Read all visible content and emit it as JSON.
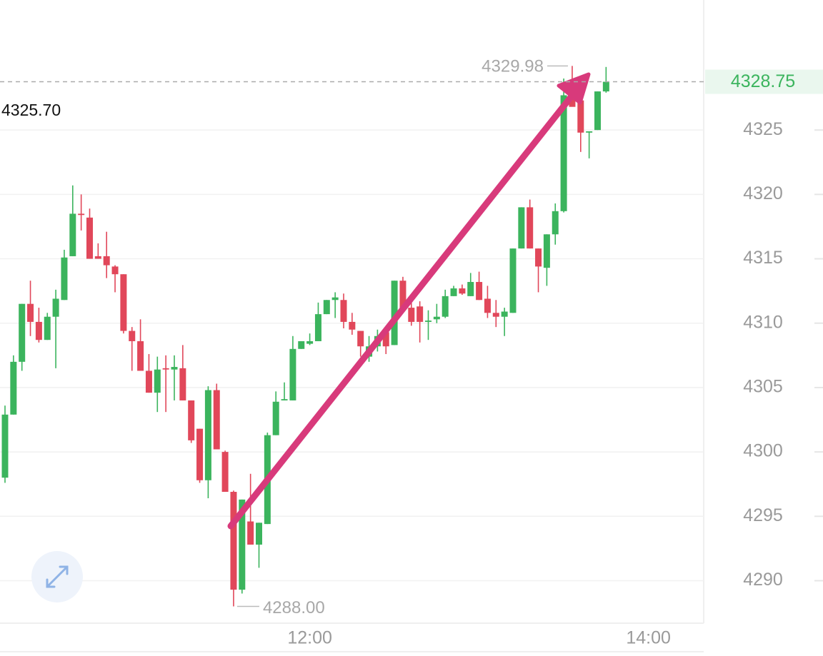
{
  "chart_data": {
    "type": "candlestick",
    "categories": [
      null,
      null,
      null,
      null,
      null,
      null,
      null,
      null,
      null,
      null,
      null,
      null,
      null,
      null,
      null,
      null,
      null,
      null,
      null,
      null,
      null,
      null,
      null,
      null,
      null,
      null,
      null,
      null,
      null,
      null,
      null,
      null,
      null,
      null,
      null,
      null,
      "12:00",
      null,
      null,
      null,
      null,
      null,
      null,
      null,
      null,
      null,
      null,
      null,
      null,
      null,
      null,
      null,
      null,
      null,
      null,
      null,
      null,
      null,
      null,
      null,
      null,
      null,
      null,
      null,
      null,
      null,
      null,
      null,
      null,
      null,
      null,
      null,
      null,
      null,
      null,
      null,
      "14:00"
    ],
    "open": [
      4298.0,
      4302.9,
      4307.0,
      4311.5,
      4310.1,
      4308.7,
      4310.5,
      4311.8,
      4315.2,
      4318.5,
      4318.2,
      4315.2,
      4315.2,
      4314.4,
      4313.8,
      4309.4,
      4308.6,
      4306.3,
      4304.6,
      4306.5,
      4306.4,
      4306.5,
      4304.0,
      4301.8,
      4297.8,
      4304.8,
      4300.0,
      4296.9,
      4289.3,
      4294.6,
      4292.8,
      4294.4,
      4301.3,
      4304.0,
      4304.0,
      4308.0,
      4308.4,
      4308.6,
      4310.7,
      4311.8,
      4311.8,
      4310.1,
      4309.4,
      4307.4,
      4308.2,
      4309.3,
      4308.3,
      4313.3,
      4311.2,
      4311.3,
      4310.1,
      4310.3,
      4310.5,
      4312.1,
      4312.7,
      4312.1,
      4313.2,
      4311.9,
      4310.8,
      4310.5,
      4310.8,
      4315.8,
      4319.0,
      4315.8,
      4314.3,
      4316.9,
      4318.7,
      4327.7,
      4327.3,
      4324.8,
      4325.0,
      4328.0,
      null,
      null,
      null,
      null,
      null
    ],
    "high": [
      4303.6,
      4307.5,
      4311.5,
      4313.3,
      4311.2,
      4310.8,
      4312.6,
      4315.7,
      4320.7,
      4320.0,
      4318.9,
      4316.2,
      4317.1,
      4314.5,
      4313.8,
      4309.7,
      4310.3,
      4307.6,
      4307.4,
      4307.5,
      4307.5,
      4308.3,
      4304.0,
      4301.8,
      4305.1,
      4305.3,
      4300.1,
      4297.0,
      4296.3,
      4298.3,
      4294.5,
      4301.5,
      4304.7,
      4305.4,
      4309.0,
      4308.6,
      4309.2,
      4311.6,
      4311.8,
      4312.4,
      4312.3,
      4310.8,
      4309.4,
      4309.0,
      4309.5,
      4309.7,
      4313.3,
      4313.6,
      4312.0,
      4311.7,
      4311.0,
      4311.5,
      4312.6,
      4312.9,
      4313.0,
      4313.9,
      4314.0,
      4312.9,
      4311.8,
      4311.2,
      4315.8,
      4319.0,
      4319.6,
      4315.8,
      4316.9,
      4319.3,
      4329.0,
      4329.98,
      4327.3,
      4324.9,
      4328.0,
      4329.9,
      null,
      null,
      null,
      null,
      null
    ],
    "low": [
      4297.6,
      4302.9,
      4306.3,
      4309.0,
      4308.5,
      4308.7,
      4306.5,
      4311.8,
      4315.2,
      4317.2,
      4315.0,
      4315.0,
      4313.5,
      4312.4,
      4309.2,
      4306.3,
      4306.3,
      4304.6,
      4303.1,
      4303.1,
      4304.0,
      4304.0,
      4300.7,
      4297.6,
      4296.4,
      4300.2,
      4296.9,
      4288.0,
      4289.0,
      4292.8,
      4291.0,
      4294.4,
      4301.3,
      4304.0,
      4304.0,
      4308.0,
      4308.3,
      4308.6,
      4310.7,
      4310.4,
      4309.6,
      4309.1,
      4307.4,
      4307.0,
      4307.8,
      4307.6,
      4308.3,
      4311.2,
      4309.8,
      4308.5,
      4308.7,
      4310.0,
      4310.4,
      4312.1,
      4312.2,
      4312.1,
      4311.8,
      4310.4,
      4309.7,
      4309.0,
      4310.8,
      4315.8,
      4315.8,
      4312.4,
      4312.9,
      4316.1,
      4318.6,
      4327.0,
      4323.3,
      4322.8,
      4325.0,
      4327.9,
      null,
      null,
      null,
      null,
      null
    ],
    "close": [
      4302.9,
      4307.0,
      4311.5,
      4310.1,
      4308.7,
      4310.5,
      4311.9,
      4315.1,
      4318.5,
      4318.4,
      4315.0,
      4315.0,
      4314.5,
      4313.8,
      4309.4,
      4308.6,
      4306.3,
      4304.6,
      4306.4,
      4306.4,
      4306.6,
      4304.0,
      4300.9,
      4297.8,
      4304.8,
      4300.2,
      4296.9,
      4289.3,
      4296.3,
      4292.8,
      4294.5,
      4301.3,
      4303.9,
      4304.1,
      4308.0,
      4308.6,
      4308.6,
      4310.7,
      4311.8,
      4312.0,
      4310.1,
      4309.5,
      4308.2,
      4308.2,
      4309.0,
      4308.2,
      4313.3,
      4311.2,
      4310.1,
      4310.1,
      4310.2,
      4310.5,
      4312.1,
      4312.7,
      4312.3,
      4313.2,
      4311.8,
      4310.8,
      4310.5,
      4310.9,
      4315.8,
      4319.0,
      4315.8,
      4314.4,
      4316.9,
      4318.7,
      4327.7,
      4326.8,
      4324.8,
      4324.9,
      4328.0,
      4328.75,
      null,
      null,
      null,
      null,
      null
    ],
    "up_color": "#3bb45d",
    "down_color": "#e1475a",
    "ylim": [
      4286.7,
      4335.1
    ],
    "yticks": [
      4290,
      4295,
      4300,
      4305,
      4310,
      4315,
      4320,
      4325
    ],
    "grid": true,
    "max_marker": {
      "value": 4329.98
    },
    "min_marker": {
      "value": 4288,
      "label": "4288.00"
    },
    "last_price": {
      "value": 4328.75
    },
    "ref_label": "4325.70"
  }
}
